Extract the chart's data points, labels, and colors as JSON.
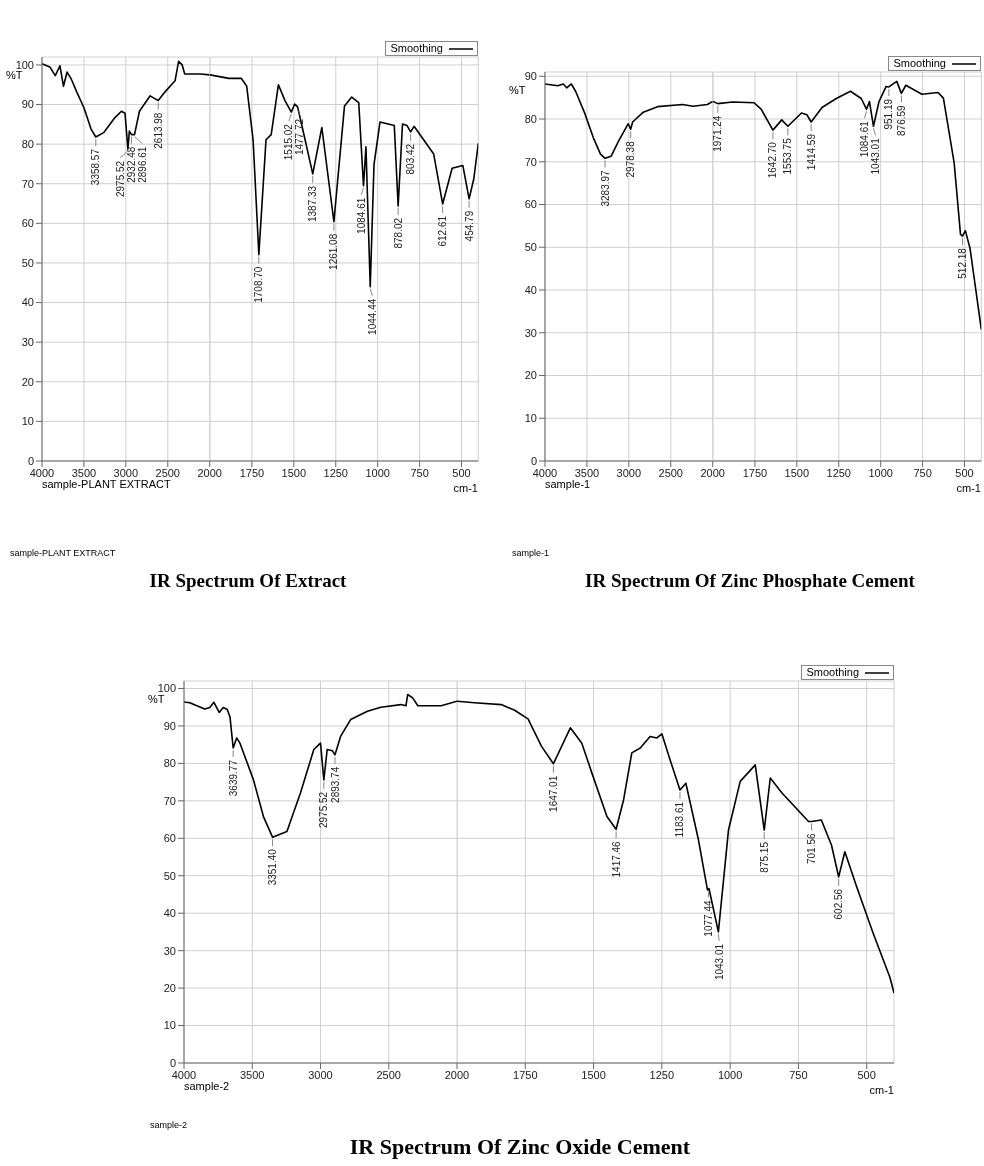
{
  "chart_data": [
    {
      "type": "line",
      "title": "IR Spectrum Of Extract",
      "ylabel": "%T",
      "grid": true,
      "marker": "none",
      "line_style": "solid",
      "xlim": [
        4000,
        2000
      ],
      "xticks": [
        4000,
        3500,
        3000,
        2500,
        2000
      ],
      "ylim": [
        0,
        102
      ],
      "yticks": [
        0,
        10,
        20,
        30,
        40,
        50,
        60,
        70,
        80,
        90,
        100
      ],
      "x": [
        4000,
        3906,
        3842,
        3786,
        3744,
        3701,
        3650,
        3586,
        3500,
        3415,
        3358.57,
        3265,
        3139,
        3053,
        3010,
        2975.52,
        2958,
        2932.48,
        2896.61,
        2838,
        2710,
        2613.98,
        2541,
        2413,
        2371,
        2328,
        2298,
        2115,
        2000
      ],
      "series": [
        {
          "color": "#000000",
          "values": [
            100.3,
            99.5,
            97.3,
            99.8,
            94.6,
            98.2,
            96.4,
            93.2,
            89.2,
            83.8,
            81.8,
            82.9,
            86.5,
            88.3,
            87.8,
            78.8,
            83.3,
            82.4,
            82.4,
            88.3,
            92.2,
            91.0,
            93.0,
            96.0,
            100.9,
            100.0,
            97.7,
            97.7,
            97.5
          ]
        }
      ],
      "annotations": [
        "sample-PLANT EXTRACT",
        "sample-PLANT EXTRACT",
        {
          "text": "3358.57",
          "x": 3358.57,
          "y": 81.8
        },
        {
          "text": "2975.52",
          "x": 2975.52,
          "y": 78.8
        },
        {
          "text": "2932.48",
          "x": 2932.48,
          "y": 82.4
        },
        {
          "text": "2896.61",
          "x": 2896.61,
          "y": 82.4
        },
        {
          "text": "2613.98",
          "x": 2613.98,
          "y": 91.0
        }
      ]
    },
    {
      "type": "line",
      "xlabel": "cm-1",
      "legend": "top right",
      "grid": true,
      "marker": "none",
      "line_style": "solid",
      "tick_labels": "x",
      "xlim": [
        2000,
        400
      ],
      "xticks": [
        1750,
        1500,
        1250,
        1000,
        750,
        500
      ],
      "ylim": [
        0,
        102
      ],
      "yticks": [
        0,
        10,
        20,
        30,
        40,
        50,
        60,
        70,
        80,
        90,
        100
      ],
      "x": [
        2000,
        1887,
        1813,
        1781,
        1743,
        1708.7,
        1666,
        1635,
        1592,
        1553,
        1515.02,
        1495,
        1477.72,
        1452,
        1387.33,
        1333,
        1261.08,
        1198,
        1155,
        1113,
        1084.61,
        1070,
        1044.44,
        1022,
        986,
        901,
        878.02,
        852,
        825,
        803.42,
        783,
        666,
        612.61,
        556,
        492,
        454.79,
        427,
        400
      ],
      "series": [
        {
          "name": "Smoothing",
          "color": "#000000",
          "values": [
            97.5,
            96.6,
            96.6,
            94.6,
            81.1,
            52.1,
            81.1,
            82.4,
            95.0,
            91.0,
            88.1,
            90.1,
            89.4,
            84.7,
            72.5,
            84.2,
            60.4,
            89.6,
            91.9,
            90.5,
            69.5,
            79.3,
            44.0,
            74.8,
            85.6,
            84.7,
            64.4,
            85.1,
            84.7,
            83.1,
            84.5,
            77.5,
            64.9,
            73.9,
            74.6,
            66.2,
            71.2,
            80.2
          ]
        }
      ],
      "annotations": [
        {
          "text": "1708.70",
          "x": 1708.7,
          "y": 52.1
        },
        {
          "text": "1515.02",
          "x": 1515.02,
          "y": 88.1
        },
        {
          "text": "1477.72",
          "x": 1477.72,
          "y": 89.4
        },
        {
          "text": "1387.33",
          "x": 1387.33,
          "y": 72.5
        },
        {
          "text": "1261.08",
          "x": 1261.08,
          "y": 60.4
        },
        {
          "text": "1084.61",
          "x": 1084.61,
          "y": 69.5
        },
        {
          "text": "1044.44",
          "x": 1044.44,
          "y": 44.0
        },
        {
          "text": "878.02",
          "x": 878.02,
          "y": 64.4
        },
        {
          "text": "803.42",
          "x": 803.42,
          "y": 83.1
        },
        {
          "text": "612.61",
          "x": 612.61,
          "y": 64.9
        },
        {
          "text": "454.79",
          "x": 454.79,
          "y": 66.2
        }
      ]
    },
    {
      "type": "line",
      "title": "IR Spectrum Of Zinc Phosphate Cement",
      "ylabel": "%T",
      "grid": true,
      "marker": "none",
      "line_style": "solid",
      "xlim": [
        4000,
        2000
      ],
      "xticks": [
        4000,
        3500,
        3000,
        2500,
        2000
      ],
      "ylim": [
        0,
        91
      ],
      "yticks": [
        0,
        10,
        20,
        30,
        40,
        50,
        60,
        70,
        80,
        90
      ],
      "x": [
        4000,
        3847,
        3783,
        3741,
        3686,
        3635,
        3529,
        3423,
        3338,
        3283.97,
        3211,
        3126,
        3007,
        2978.38,
        2955,
        2828,
        2658,
        2361,
        2234,
        2064,
        2000
      ],
      "series": [
        {
          "color": "#000000",
          "values": [
            88.2,
            87.8,
            88.2,
            87.3,
            88.2,
            86.5,
            81.5,
            75.6,
            71.8,
            70.8,
            71.3,
            74.7,
            78.9,
            77.6,
            79.3,
            81.6,
            82.9,
            83.4,
            83.0,
            83.4,
            84.1
          ]
        }
      ],
      "annotations": [
        "sample-1",
        "sample-1",
        {
          "text": "3283.97",
          "x": 3283.97,
          "y": 70.8
        },
        {
          "text": "2978.38",
          "x": 2978.38,
          "y": 77.6
        }
      ]
    },
    {
      "type": "line",
      "xlabel": "cm-1",
      "legend": "top right",
      "grid": true,
      "marker": "none",
      "line_style": "solid",
      "tick_labels": "x",
      "xlim": [
        2000,
        400
      ],
      "xticks": [
        1750,
        1500,
        1250,
        1000,
        750,
        500
      ],
      "ylim": [
        0,
        91
      ],
      "yticks": [
        0,
        10,
        20,
        30,
        40,
        50,
        60,
        70,
        80,
        90
      ],
      "x": [
        2000,
        1971.24,
        1883,
        1755,
        1713,
        1642.7,
        1590,
        1553.75,
        1472,
        1440,
        1414.59,
        1350,
        1265,
        1180,
        1116,
        1084.61,
        1067,
        1043.01,
        1010,
        968,
        951.19,
        904,
        876.59,
        850,
        754,
        658,
        626,
        562,
        524,
        512.18,
        495,
        467,
        400
      ],
      "series": [
        {
          "name": "Smoothing",
          "color": "#000000",
          "values": [
            84.1,
            83.6,
            84.0,
            83.8,
            82.3,
            77.4,
            79.8,
            78.3,
            81.4,
            81.0,
            79.3,
            82.7,
            84.8,
            86.5,
            84.8,
            82.3,
            84.1,
            78.3,
            84.1,
            87.6,
            87.5,
            88.8,
            86.0,
            87.9,
            85.8,
            86.2,
            84.9,
            69.8,
            53.0,
            52.6,
            53.9,
            49.7,
            30.8
          ]
        }
      ],
      "annotations": [
        {
          "text": "1971.24",
          "x": 1971.24,
          "y": 83.6
        },
        {
          "text": "1642.70",
          "x": 1642.7,
          "y": 77.4
        },
        {
          "text": "1553.75",
          "x": 1553.75,
          "y": 78.3
        },
        {
          "text": "1414.59",
          "x": 1414.59,
          "y": 79.3
        },
        {
          "text": "1084.61",
          "x": 1084.61,
          "y": 82.3
        },
        {
          "text": "1043.01",
          "x": 1043.01,
          "y": 78.3
        },
        {
          "text": "951.19",
          "x": 951.19,
          "y": 87.5
        },
        {
          "text": "876.59",
          "x": 876.59,
          "y": 86.0
        },
        {
          "text": "512.18",
          "x": 512.18,
          "y": 52.6
        }
      ]
    },
    {
      "type": "line",
      "title": "IR Spectrum Of Zinc Oxide Cement",
      "ylabel": "%T",
      "grid": true,
      "marker": "none",
      "line_style": "solid",
      "xlim": [
        4000,
        2000
      ],
      "xticks": [
        4000,
        3500,
        3000,
        2500,
        2000
      ],
      "ylim": [
        0,
        102
      ],
      "yticks": [
        0,
        10,
        20,
        30,
        40,
        50,
        60,
        70,
        80,
        90,
        100
      ],
      "x": [
        4000,
        3958,
        3848,
        3811,
        3781,
        3742,
        3713,
        3683,
        3663,
        3639.77,
        3614,
        3590,
        3491,
        3418,
        3351.4,
        3246,
        3147,
        3049,
        3000,
        2975.52,
        2951,
        2914,
        2893.74,
        2853,
        2779,
        2656,
        2558,
        2411,
        2374,
        2361,
        2325,
        2287,
        2116,
        2000
      ],
      "series": [
        {
          "color": "#000000",
          "values": [
            96.4,
            96.2,
            94.5,
            94.9,
            96.3,
            93.6,
            94.9,
            94.4,
            92.4,
            84.1,
            86.8,
            85.4,
            75.6,
            65.8,
            60.3,
            61.8,
            72.1,
            83.7,
            85.4,
            75.6,
            83.7,
            83.4,
            82.3,
            87.2,
            91.7,
            93.9,
            95.0,
            95.7,
            95.4,
            98.4,
            97.5,
            95.4,
            95.4,
            96.6
          ]
        }
      ],
      "annotations": [
        "sample-2",
        "sample-2",
        {
          "text": "3639.77",
          "x": 3639.77,
          "y": 84.1
        },
        {
          "text": "3351.40",
          "x": 3351.4,
          "y": 60.3
        },
        {
          "text": "2975.52",
          "x": 2975.52,
          "y": 75.6
        },
        {
          "text": "2893.74",
          "x": 2893.74,
          "y": 82.3
        }
      ]
    },
    {
      "type": "line",
      "xlabel": "cm-1",
      "legend": "top right",
      "grid": true,
      "marker": "none",
      "line_style": "solid",
      "tick_labels": "x",
      "xlim": [
        2000,
        400
      ],
      "xticks": [
        1750,
        1500,
        1250,
        1000,
        750,
        500
      ],
      "ylim": [
        0,
        102
      ],
      "yticks": [
        0,
        10,
        20,
        30,
        40,
        50,
        60,
        70,
        80,
        90,
        100
      ],
      "x": [
        2000,
        1936,
        1838,
        1789,
        1740,
        1691,
        1647.01,
        1585,
        1543,
        1506,
        1451,
        1417.46,
        1390,
        1360,
        1329,
        1293,
        1268,
        1250,
        1220,
        1183.61,
        1162,
        1116,
        1083,
        1077.44,
        1043.01,
        1006,
        963,
        908,
        875.15,
        853,
        810,
        713,
        701.56,
        666,
        629,
        602.56,
        580,
        537,
        476,
        415,
        400
      ],
      "series": [
        {
          "name": "Smoothing",
          "color": "#000000",
          "values": [
            96.6,
            96.2,
            95.7,
            94.2,
            91.9,
            84.6,
            79.9,
            89.5,
            85.4,
            77.4,
            65.8,
            62.4,
            70.3,
            82.8,
            84.1,
            87.2,
            86.8,
            87.9,
            81.0,
            72.9,
            74.7,
            59.6,
            46.2,
            46.6,
            35.0,
            62.2,
            75.2,
            79.6,
            62.2,
            76.1,
            72.1,
            64.5,
            64.5,
            64.9,
            58.2,
            49.7,
            56.4,
            47.1,
            34.6,
            22.9,
            18.7
          ]
        }
      ],
      "annotations": [
        {
          "text": "1647.01",
          "x": 1647.01,
          "y": 79.9
        },
        {
          "text": "1417.46",
          "x": 1417.46,
          "y": 62.4
        },
        {
          "text": "1183.61",
          "x": 1183.61,
          "y": 72.9
        },
        {
          "text": "1077.44",
          "x": 1077.44,
          "y": 46.6
        },
        {
          "text": "1043.01",
          "x": 1043.01,
          "y": 35.0
        },
        {
          "text": "875.15",
          "x": 875.15,
          "y": 62.2
        },
        {
          "text": "701.56",
          "x": 701.56,
          "y": 64.5
        },
        {
          "text": "602.56",
          "x": 602.56,
          "y": 49.7
        }
      ]
    }
  ]
}
